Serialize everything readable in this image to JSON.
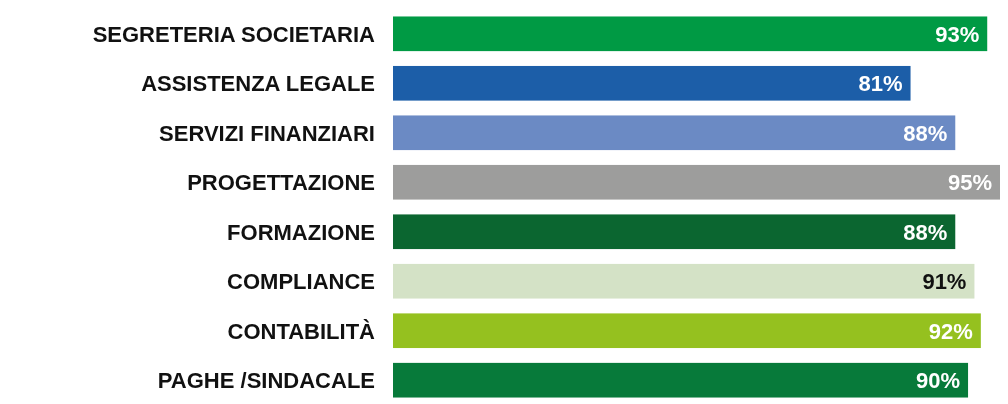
{
  "chart_data": {
    "type": "bar",
    "orientation": "horizontal",
    "categories": [
      "SEGRETERIA SOCIETARIA",
      "ASSISTENZA LEGALE",
      "SERVIZI FINANZIARI",
      "PROGETTAZIONE",
      "FORMAZIONE",
      "COMPLIANCE",
      "CONTABILITÀ",
      "PAGHE /SINDACALE"
    ],
    "values": [
      93,
      81,
      88,
      95,
      88,
      91,
      92,
      90
    ],
    "value_labels": [
      "93%",
      "81%",
      "88%",
      "95%",
      "88%",
      "91%",
      "92%",
      "90%"
    ],
    "colors": [
      "#009a44",
      "#1c5ea8",
      "#6b8ac4",
      "#9d9d9c",
      "#0b6630",
      "#d4e2c6",
      "#95c11f",
      "#077a3a"
    ],
    "data_labels": true
  }
}
